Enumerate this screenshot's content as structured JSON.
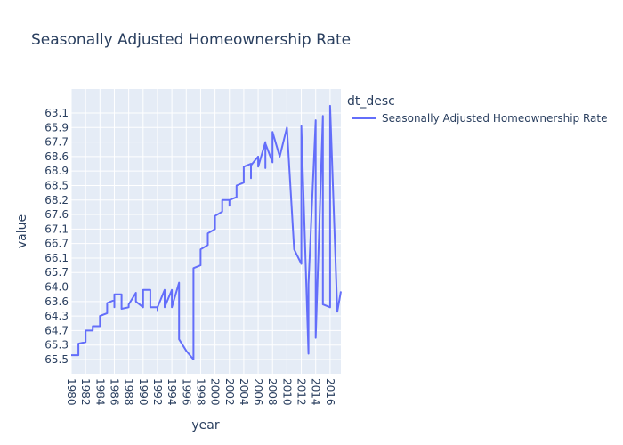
{
  "chart_data": {
    "type": "line",
    "title": "Seasonally Adjusted Homeownership Rate",
    "xlabel": "year",
    "ylabel": "value",
    "legend": {
      "title": "dt_desc",
      "placement": "top-right"
    },
    "x_ticks": [
      "1980",
      "1982",
      "1984",
      "1986",
      "1988",
      "1990",
      "1992",
      "1994",
      "1996",
      "1998",
      "2000",
      "2002",
      "2004",
      "2006",
      "2008",
      "2010",
      "2012",
      "2014",
      "2016"
    ],
    "y_categories": [
      "65.5",
      "65.3",
      "64.7",
      "64.3",
      "63.6",
      "64.0",
      "65.7",
      "66.1",
      "66.7",
      "67.1",
      "67.6",
      "68.2",
      "68.5",
      "68.9",
      "68.6",
      "67.7",
      "65.9",
      "63.1"
    ],
    "xlim": [
      1980,
      2017.5
    ],
    "grid": true,
    "series": [
      {
        "name": "Seasonally Adjusted Homeownership Rate",
        "color": "#636efa",
        "x": [
          1980,
          1981,
          1981,
          1982,
          1982,
          1983,
          1983,
          1984,
          1984,
          1985,
          1985,
          1986,
          1986,
          1986,
          1986,
          1987,
          1987,
          1988,
          1988,
          1989,
          1989,
          1990,
          1990,
          1990,
          1991,
          1991,
          1992,
          1992,
          1992,
          1993,
          1993,
          1994,
          1994,
          1995,
          1995,
          1996,
          1997,
          1997,
          1998,
          1998,
          1999,
          1999,
          2000,
          2000,
          2001,
          2001,
          2002,
          2002,
          2002,
          2003,
          2003,
          2004,
          2004,
          2005,
          2005,
          2005,
          2006,
          2006,
          2007,
          2007,
          2007,
          2008,
          2008,
          2009,
          2010,
          2010,
          2011,
          2011,
          2012,
          2012,
          2013,
          2013,
          2014,
          2014,
          2015,
          2015,
          2016,
          2016,
          2017,
          2017.5
        ],
        "y": [
          0.3,
          0.3,
          1.1,
          1.2,
          2.0,
          2.0,
          2.3,
          2.3,
          3.0,
          3.2,
          3.9,
          4.1,
          3.6,
          4.1,
          4.5,
          4.5,
          3.5,
          3.6,
          3.8,
          4.6,
          4.0,
          3.6,
          4.8,
          4.8,
          4.8,
          3.6,
          3.6,
          3.4,
          3.6,
          4.8,
          3.6,
          4.8,
          3.6,
          5.3,
          1.4,
          0.6,
          0.0,
          6.3,
          6.5,
          7.6,
          7.9,
          8.7,
          9.0,
          9.9,
          10.2,
          11.0,
          11.0,
          10.6,
          11.0,
          11.2,
          12.0,
          12.2,
          13.3,
          13.5,
          12.5,
          13.4,
          14.0,
          13.3,
          15.0,
          13.2,
          14.9,
          13.6,
          15.7,
          14.0,
          16.0,
          16.0,
          7.6,
          7.6,
          6.6,
          16.1,
          0.4,
          5.2,
          16.5,
          1.5,
          16.8,
          3.8,
          3.6,
          17.5,
          3.3,
          4.7
        ]
      }
    ]
  }
}
